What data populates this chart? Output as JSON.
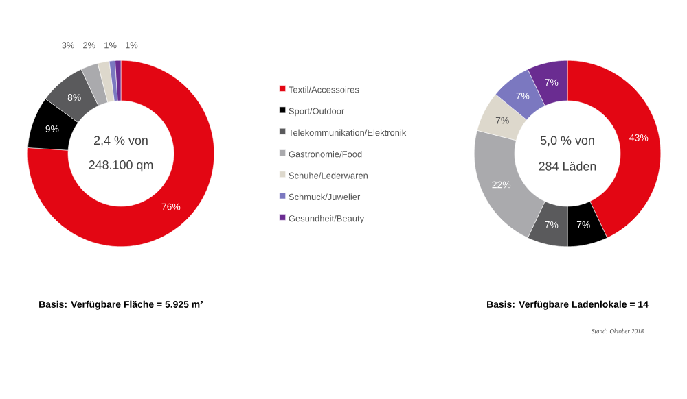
{
  "chart_data": [
    {
      "type": "donut",
      "categories": [
        "Textil/Accessoires",
        "Sport/Outdoor",
        "Telekommunikation/Elektronik",
        "Gastronomie/Food",
        "Schuhe/Lederwaren",
        "Schmuck/Juwelier",
        "Gesundheit/Beauty"
      ],
      "values": [
        76,
        9,
        8,
        3,
        2,
        1,
        1
      ],
      "value_labels": [
        "76%",
        "9%",
        "8%",
        "3%",
        "2%",
        "1%",
        "1%"
      ],
      "colors": [
        "#e30613",
        "#000000",
        "#5a5a5c",
        "#aaaaad",
        "#ddd8cc",
        "#7b78c0",
        "#6a2c91"
      ],
      "legend": "right",
      "annotations": [
        "2,4 % von",
        "248.100 qm",
        "Basis: Verfügbare Fläche = 5.925 m²"
      ]
    },
    {
      "type": "donut",
      "categories": [
        null,
        null,
        null,
        null,
        null,
        null,
        null
      ],
      "values": [
        43,
        7,
        7,
        22,
        7,
        7,
        7
      ],
      "value_labels": [
        "43%",
        "7%",
        "7%",
        "22%",
        "7%",
        "7%",
        "7%"
      ],
      "colors": [
        "#e30613",
        "#000000",
        "#5a5a5c",
        "#aaaaad",
        "#ddd8cc",
        "#7b78c0",
        "#6a2c91"
      ],
      "annotations": [
        "5,0 % von",
        "284 Läden",
        "Basis: Verfügbare Ladenlokale = 14",
        "Stand: Oktober 2018"
      ]
    }
  ]
}
